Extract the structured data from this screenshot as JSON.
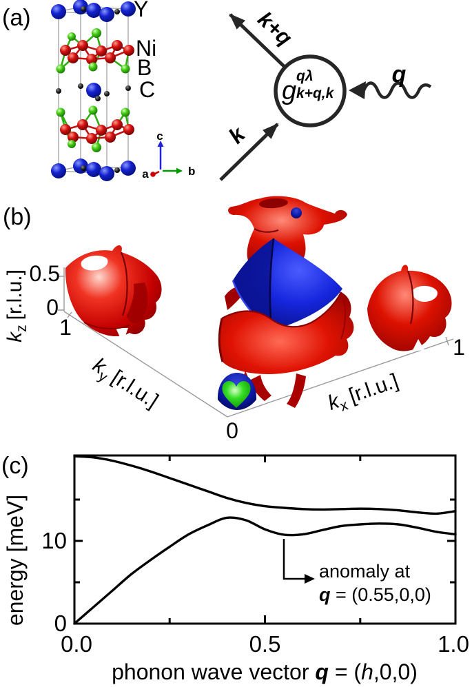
{
  "panels": {
    "a_label": "(a)",
    "b_label": "(b)",
    "c_label": "(c)"
  },
  "crystal": {
    "legend": {
      "y": "Y",
      "ni": "Ni",
      "b": "B",
      "c": "C"
    },
    "legend_colors": {
      "y": "#0008e0",
      "ni": "#ee0000",
      "b": "#00cc00",
      "c": "#000000"
    },
    "axes": {
      "a": "a",
      "b": "b",
      "c": "c"
    },
    "axes_colors": {
      "a": "#cc0000",
      "b": "#009900",
      "c": "#2222dd"
    },
    "atom_colors": {
      "y": "#1322cf",
      "ni": "#d41111",
      "b": "#44cc11",
      "c": "#111111"
    }
  },
  "feynman": {
    "vertex": {
      "g": "g",
      "sup": "qλ",
      "sub": "k+q,k"
    },
    "outgoing_label": "k+q",
    "incoming_label": "k",
    "phonon_label": "q"
  },
  "fermi": {
    "kz": {
      "base": "k",
      "sub": "z",
      "unit": "[r.l.u.]",
      "tick_top": "0.5",
      "tick_bottom": "0"
    },
    "ky": {
      "base": "k",
      "sub": "y",
      "unit": "[r.l.u.]",
      "tick": "1"
    },
    "kx": {
      "base": "k",
      "sub": "x",
      "unit": "[r.l.u.]",
      "tick": "1"
    },
    "origin_tick": "0",
    "surface_colors": {
      "red": "#d80000",
      "blue": "#1020cc",
      "green": "#22cc00"
    }
  },
  "chart_data": {
    "type": "line",
    "title": "",
    "xlabel_parts": {
      "prefix": "phonon wave vector ",
      "q": "q",
      "mid": " = (",
      "h": "h",
      "suffix": ",0,0)"
    },
    "ylabel": "energy [meV]",
    "xlim": [
      0,
      1.0
    ],
    "ylim": [
      0,
      20.33
    ],
    "grid": false,
    "x_major_ticks": [
      0.0,
      0.5,
      1.0
    ],
    "x_major_tick_labels": [
      "0.0",
      "0.5",
      "1.0"
    ],
    "x_minor_ticks": [
      0.25,
      0.75
    ],
    "y_major_ticks": [
      0,
      10
    ],
    "y_major_tick_labels": [
      "0",
      "10"
    ],
    "y_minor_ticks": [
      5,
      15
    ],
    "series": [
      {
        "name": "acoustic phonon branch",
        "x": [
          0,
          0.05,
          0.1,
          0.15,
          0.2,
          0.25,
          0.3,
          0.35,
          0.4,
          0.45,
          0.5,
          0.55,
          0.6,
          0.65,
          0.7,
          0.75,
          0.8,
          0.85,
          0.9,
          0.95,
          1.0
        ],
        "y": [
          0,
          2.0,
          4.0,
          6.0,
          7.7,
          9.3,
          10.8,
          11.9,
          12.8,
          12.5,
          11.4,
          10.75,
          10.8,
          11.3,
          11.8,
          12.0,
          12.1,
          12.0,
          11.6,
          11.1,
          10.8
        ]
      },
      {
        "name": "optic phonon branch",
        "x": [
          0,
          0.05,
          0.1,
          0.15,
          0.2,
          0.25,
          0.3,
          0.35,
          0.4,
          0.45,
          0.5,
          0.55,
          0.6,
          0.65,
          0.7,
          0.75,
          0.8,
          0.85,
          0.9,
          0.95,
          1.0
        ],
        "y": [
          20.25,
          20.1,
          19.7,
          19.1,
          18.4,
          17.6,
          16.8,
          16.0,
          15.2,
          14.6,
          14.2,
          14.0,
          13.85,
          13.8,
          13.85,
          13.9,
          13.85,
          13.7,
          13.45,
          13.3,
          13.6
        ]
      }
    ],
    "annotation": {
      "line1": "anomaly at",
      "q": "q",
      "rest": " = (0.55,0,0)",
      "target_h": 0.55,
      "target_energy": 10.75
    },
    "curve_color": "#000000"
  }
}
